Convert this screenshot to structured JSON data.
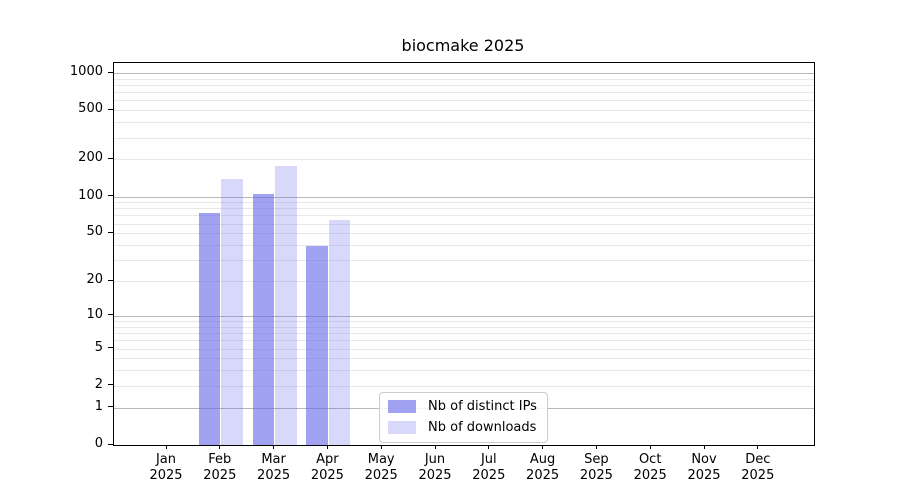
{
  "chart_data": {
    "type": "bar",
    "title": "biocmake 2025",
    "x_categories": [
      "Jan",
      "Feb",
      "Mar",
      "Apr",
      "May",
      "Jun",
      "Jul",
      "Aug",
      "Sep",
      "Oct",
      "Nov",
      "Dec"
    ],
    "x_year_sublabel": "2025",
    "y_scale": "log10(1+x)",
    "ylim": [
      0,
      1200
    ],
    "y_ticks": [
      0,
      1,
      2,
      5,
      10,
      20,
      50,
      100,
      200,
      500,
      1000
    ],
    "y_major_gridlines": [
      1,
      10,
      100,
      1000
    ],
    "y_minor_gridlines": [
      2,
      3,
      4,
      5,
      6,
      7,
      8,
      9,
      20,
      30,
      40,
      50,
      60,
      70,
      80,
      90,
      200,
      300,
      400,
      500,
      600,
      700,
      800,
      900
    ],
    "grid": true,
    "legend_position": "lower center",
    "series": [
      {
        "name": "Nb of distinct IPs",
        "color": "rgba(100,100,235,0.6)",
        "color_hex_on_white": "#a3a3f1",
        "values": [
          0,
          73,
          105,
          39,
          0,
          0,
          0,
          0,
          0,
          0,
          0,
          0
        ]
      },
      {
        "name": "Nb of downloads",
        "color": "rgba(100,100,235,0.25)",
        "color_hex_on_white": "#d9d9f8",
        "values": [
          0,
          140,
          178,
          64,
          0,
          0,
          0,
          0,
          0,
          0,
          0,
          0
        ]
      }
    ],
    "colors": {
      "gridline_major": "rgba(0,0,0,0.28)",
      "gridline_minor": "rgba(0,0,0,0.09)",
      "axis": "#000000"
    }
  }
}
